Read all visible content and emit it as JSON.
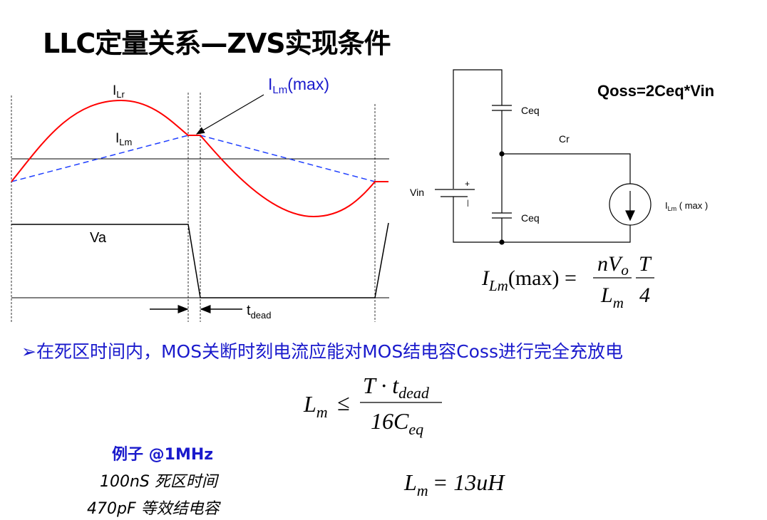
{
  "title": "LLC定量关系—ZVS实现条件",
  "waveform": {
    "ilr_label": "I",
    "ilr_sub": "Lr",
    "ilm_label": "I",
    "ilm_sub": "Lm",
    "ilm_max_label": "I",
    "ilm_max_sub": "Lm",
    "ilm_max_suffix": "(max)",
    "va_label": "Va",
    "tdead_label": "t",
    "tdead_sub": "dead",
    "colors": {
      "ilr": "#ff0000",
      "ilm": "#1f3fff",
      "annotation": "#1a1acc"
    }
  },
  "circuit": {
    "qoss_formula": "Qoss=2Ceq*Vin",
    "ceq_top": "Ceq",
    "ceq_bottom": "Ceq",
    "cr": "Cr",
    "vin": "Vin",
    "plus": "+",
    "minus": "|",
    "source_label": "I",
    "source_sub": "Lm",
    "source_suffix": " ( max )"
  },
  "formula_ilm": {
    "lhs": "I",
    "lhs_sub": "Lm",
    "lhs_arg": "(max) =",
    "num1": "nV",
    "num1_sub": "o",
    "den1": "L",
    "den1_sub": "m",
    "num2": "T",
    "den2": "4"
  },
  "bullet": "➢在死区时间内，MOS关断时刻电流应能对MOS结电容Coss进行完全充放电",
  "formula_lm": {
    "lhs": "L",
    "lhs_sub": "m",
    "op": "≤",
    "num": "T · t",
    "num_sub": "dead",
    "den": "16C",
    "den_sub": "eq"
  },
  "example": {
    "title": "例子 @1MHz",
    "line1": "100nS 死区时间",
    "line2": "470pF 等效结电容"
  },
  "result": {
    "lhs": "L",
    "lhs_sub": "m",
    "rhs": "= 13uH"
  }
}
